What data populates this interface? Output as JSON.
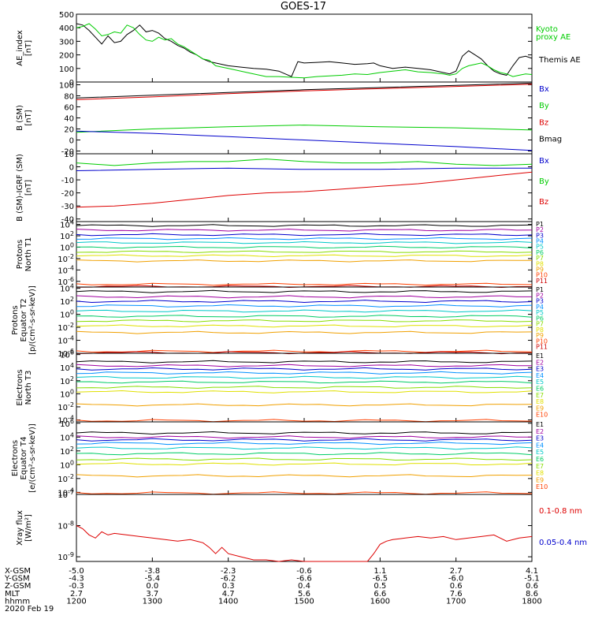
{
  "title": "GOES-17",
  "colors": {
    "black": "#000000",
    "green": "#00cc00",
    "blue": "#0000cc",
    "red": "#dd0000",
    "channels": [
      "#000000",
      "#a000a0",
      "#0000cc",
      "#0090ff",
      "#00c8c8",
      "#00cc66",
      "#88dd00",
      "#e0e000",
      "#f0a000",
      "#ff4000",
      "#cc0000"
    ]
  },
  "x_axis": {
    "rows": [
      {
        "label": "X-GSM",
        "values": [
          "-5.0",
          "-3.8",
          "-2.3",
          "-0.6",
          "1.1",
          "2.7",
          "4.1"
        ]
      },
      {
        "label": "Y-GSM",
        "values": [
          "-4.3",
          "-5.4",
          "-6.2",
          "-6.6",
          "-6.5",
          "-6.0",
          "-5.1"
        ]
      },
      {
        "label": "Z-GSM",
        "values": [
          "-0.3",
          "0.0",
          "0.3",
          "0.4",
          "0.5",
          "0.6",
          "0.6"
        ]
      },
      {
        "label": "MLT",
        "values": [
          "2.7",
          "3.7",
          "4.7",
          "5.6",
          "6.6",
          "7.6",
          "8.6"
        ]
      },
      {
        "label": "hhmm",
        "values": [
          "1200",
          "1300",
          "1400",
          "1500",
          "1600",
          "1700",
          "1800"
        ]
      }
    ],
    "date": "2020 Feb 19"
  },
  "chart_data": [
    {
      "type": "line",
      "id": "ae",
      "ylabel": [
        "AE_index",
        "[nT]"
      ],
      "ylim": [
        0,
        500
      ],
      "ticks": [
        "0",
        "100",
        "200",
        "300",
        "400",
        "500"
      ],
      "tick_values": [
        0,
        100,
        200,
        300,
        400,
        500
      ],
      "legend": [
        {
          "text": "Kyoto",
          "color": "green"
        },
        {
          "text": "proxy AE",
          "color": "green"
        },
        {
          "text": "Themis AE",
          "color": "black"
        }
      ],
      "series": [
        {
          "name": "Themis AE",
          "color": "black",
          "x": [
            1200,
            1205,
            1210,
            1215,
            1220,
            1225,
            1230,
            1235,
            1240,
            1245,
            1250,
            1255,
            1300,
            1305,
            1310,
            1315,
            1320,
            1325,
            1330,
            1335,
            1340,
            1345,
            1350,
            1355,
            1400,
            1410,
            1420,
            1430,
            1440,
            1445,
            1450,
            1455,
            1500,
            1510,
            1520,
            1530,
            1540,
            1550,
            1555,
            1600,
            1605,
            1610,
            1620,
            1630,
            1640,
            1650,
            1655,
            1700,
            1705,
            1710,
            1715,
            1720,
            1725,
            1730,
            1735,
            1740,
            1745,
            1750,
            1755,
            1800
          ],
          "y": [
            430,
            420,
            380,
            330,
            280,
            340,
            290,
            300,
            350,
            380,
            420,
            370,
            380,
            360,
            320,
            300,
            270,
            250,
            220,
            200,
            170,
            150,
            140,
            130,
            120,
            110,
            100,
            95,
            80,
            60,
            40,
            150,
            140,
            145,
            150,
            140,
            130,
            135,
            140,
            120,
            110,
            100,
            110,
            100,
            90,
            70,
            60,
            80,
            190,
            230,
            200,
            170,
            120,
            80,
            60,
            50,
            120,
            180,
            190,
            175
          ]
        },
        {
          "name": "Kyoto proxy AE",
          "color": "green",
          "x": [
            1200,
            1205,
            1210,
            1215,
            1220,
            1225,
            1230,
            1235,
            1240,
            1245,
            1250,
            1255,
            1300,
            1305,
            1310,
            1315,
            1320,
            1325,
            1330,
            1335,
            1340,
            1345,
            1350,
            1355,
            1400,
            1410,
            1420,
            1430,
            1440,
            1450,
            1500,
            1510,
            1520,
            1530,
            1540,
            1550,
            1600,
            1610,
            1620,
            1630,
            1640,
            1650,
            1655,
            1700,
            1705,
            1710,
            1715,
            1720,
            1725,
            1730,
            1735,
            1740,
            1745,
            1750,
            1755,
            1800
          ],
          "y": [
            400,
            410,
            430,
            390,
            340,
            350,
            370,
            360,
            420,
            400,
            350,
            310,
            300,
            330,
            310,
            320,
            280,
            260,
            230,
            200,
            170,
            160,
            120,
            110,
            100,
            80,
            60,
            40,
            40,
            35,
            30,
            40,
            45,
            50,
            60,
            55,
            70,
            80,
            90,
            75,
            70,
            60,
            50,
            60,
            100,
            120,
            130,
            140,
            120,
            90,
            70,
            60,
            40,
            50,
            60,
            55
          ]
        }
      ]
    },
    {
      "type": "line",
      "id": "bsm",
      "ylabel": [
        "B (SM)",
        "[nT]"
      ],
      "ylim": [
        -25,
        105
      ],
      "ticks": [
        "-20",
        "0",
        "20",
        "40",
        "60",
        "80",
        "100"
      ],
      "tick_values": [
        -20,
        0,
        20,
        40,
        60,
        80,
        100
      ],
      "legend": [
        {
          "text": "Bx",
          "color": "blue"
        },
        {
          "text": "By",
          "color": "green"
        },
        {
          "text": "Bz",
          "color": "red"
        },
        {
          "text": "Bmag",
          "color": "black"
        }
      ],
      "series": [
        {
          "name": "Bmag",
          "color": "black",
          "x": [
            1200,
            1300,
            1400,
            1500,
            1600,
            1700,
            1800
          ],
          "y": [
            76,
            81,
            86,
            91,
            95,
            99,
            103
          ]
        },
        {
          "name": "Bz",
          "color": "red",
          "x": [
            1200,
            1300,
            1400,
            1500,
            1600,
            1700,
            1800
          ],
          "y": [
            73,
            78,
            84,
            89,
            93,
            97,
            101
          ]
        },
        {
          "name": "By",
          "color": "green",
          "x": [
            1200,
            1300,
            1400,
            1500,
            1600,
            1700,
            1800
          ],
          "y": [
            14,
            20,
            24,
            27,
            24,
            22,
            18
          ]
        },
        {
          "name": "Bx",
          "color": "blue",
          "x": [
            1200,
            1300,
            1400,
            1500,
            1600,
            1700,
            1800
          ],
          "y": [
            16,
            12,
            6,
            0,
            -6,
            -12,
            -19
          ]
        }
      ]
    },
    {
      "type": "line",
      "id": "bigrf",
      "ylabel": [
        "B (SM)-IGRF (SM)",
        "[nT]"
      ],
      "ylim": [
        -42,
        10
      ],
      "ticks": [
        "-40",
        "-30",
        "-20",
        "-10",
        "0",
        "10"
      ],
      "tick_values": [
        -40,
        -30,
        -20,
        -10,
        0,
        10
      ],
      "legend": [
        {
          "text": "Bx",
          "color": "blue"
        },
        {
          "text": "By",
          "color": "green"
        },
        {
          "text": "Bz",
          "color": "red"
        }
      ],
      "series": [
        {
          "name": "By",
          "color": "green",
          "x": [
            1200,
            1230,
            1300,
            1330,
            1400,
            1430,
            1500,
            1530,
            1600,
            1630,
            1700,
            1730,
            1800
          ],
          "y": [
            3,
            1,
            3,
            4,
            4,
            6,
            4,
            3,
            3,
            4,
            2,
            1,
            2
          ]
        },
        {
          "name": "Bx",
          "color": "blue",
          "x": [
            1200,
            1300,
            1400,
            1500,
            1600,
            1700,
            1800
          ],
          "y": [
            -3,
            -2,
            -1,
            -2,
            -2,
            -1,
            -1
          ]
        },
        {
          "name": "Bz",
          "color": "red",
          "x": [
            1200,
            1230,
            1300,
            1330,
            1400,
            1430,
            1500,
            1530,
            1600,
            1630,
            1700,
            1730,
            1800
          ],
          "y": [
            -31,
            -30,
            -28,
            -25,
            -22,
            -20,
            -19,
            -17,
            -15,
            -13,
            -10,
            -7,
            -4
          ]
        }
      ]
    },
    {
      "type": "line",
      "id": "p_north",
      "log": true,
      "ylabel": [
        "Protons",
        "North T1"
      ],
      "ylim_exp": [
        -7,
        4.5
      ],
      "ticks": [
        "10-6",
        "10-4",
        "10-2",
        "100",
        "102",
        "104"
      ],
      "tick_exps": [
        -6,
        -4,
        -2,
        0,
        2,
        4
      ],
      "legend": [
        "P1",
        "P2",
        "P3",
        "P4",
        "P5",
        "P6",
        "P7",
        "P8",
        "P9",
        "P10",
        "P11"
      ],
      "levels_exp": [
        3.8,
        3.0,
        2.2,
        1.5,
        0.8,
        0.0,
        -0.8,
        -1.5,
        -2.4,
        -6.5,
        -6.9
      ]
    },
    {
      "type": "line",
      "id": "p_equator",
      "log": true,
      "ylabel": [
        "Protons",
        "Equator T2",
        "[p/(cm²-s-sr-keV)]"
      ],
      "ylim_exp": [
        -6,
        4.2
      ],
      "ticks": [
        "10-6",
        "10-4",
        "10-2",
        "100",
        "102",
        "104"
      ],
      "tick_exps": [
        -6,
        -4,
        -2,
        0,
        2,
        4
      ],
      "legend": [
        "P1",
        "P2",
        "P3",
        "P4",
        "P5",
        "P6",
        "P7",
        "P8",
        "P9",
        "P10",
        "P11"
      ],
      "levels_exp": [
        3.5,
        2.7,
        2.0,
        1.3,
        0.5,
        -0.3,
        -1.0,
        -1.8,
        -2.8,
        -5.7,
        -5.9
      ]
    },
    {
      "type": "line",
      "id": "e_north",
      "log": true,
      "ylabel": [
        "Electrons",
        "North T3"
      ],
      "ylim_exp": [
        -4.3,
        6.2
      ],
      "ticks": [
        "10-4",
        "10-2",
        "100",
        "102",
        "104",
        "106"
      ],
      "tick_exps": [
        -4,
        -2,
        0,
        2,
        4,
        6
      ],
      "legend": [
        "E1",
        "E2",
        "E3",
        "E4",
        "E5",
        "E6",
        "E7",
        "E8",
        "E9",
        "E10"
      ],
      "levels_exp": [
        4.9,
        4.3,
        3.8,
        3.2,
        2.5,
        1.8,
        1.0,
        0.3,
        -1.7,
        -4.1
      ]
    },
    {
      "type": "line",
      "id": "e_equator",
      "log": true,
      "ylabel": [
        "Electrons",
        "Equator T4",
        "[e/(cm²-s-sr-keV)]"
      ],
      "ylim_exp": [
        -4.3,
        6.2
      ],
      "ticks": [
        "10-4",
        "10-2",
        "100",
        "102",
        "104",
        "106"
      ],
      "tick_exps": [
        -4,
        -2,
        0,
        2,
        4,
        6
      ],
      "legend": [
        "E1",
        "E2",
        "E3",
        "E4",
        "E5",
        "E6",
        "E7",
        "E8",
        "E9",
        "E10"
      ],
      "levels_exp": [
        4.6,
        4.0,
        3.6,
        3.1,
        2.4,
        1.6,
        0.8,
        0.1,
        -1.6,
        -4.1
      ]
    },
    {
      "type": "line",
      "id": "xray",
      "log": true,
      "ylabel": [
        "Xray flux",
        "[W/m²]"
      ],
      "ylim_exp": [
        -9.15,
        -7
      ],
      "ticks": [
        "10-9",
        "10-8",
        "10-7"
      ],
      "tick_exps": [
        -9,
        -8,
        -7
      ],
      "legend": [
        {
          "text": "0.1-0.8 nm",
          "color": "red"
        },
        {
          "text": "0.05-0.4 nm",
          "color": "blue"
        }
      ],
      "series": [
        {
          "name": "0.1-0.8 nm",
          "color": "red",
          "x": [
            1200,
            1205,
            1210,
            1215,
            1220,
            1225,
            1230,
            1240,
            1250,
            1300,
            1310,
            1320,
            1330,
            1340,
            1345,
            1350,
            1355,
            1400,
            1410,
            1420,
            1430,
            1440,
            1450,
            1500,
            1510,
            1520,
            1530,
            1540,
            1550,
            1555,
            1600,
            1605,
            1610,
            1620,
            1630,
            1640,
            1650,
            1700,
            1710,
            1720,
            1730,
            1740,
            1750,
            1800
          ],
          "y_exp": [
            -8.0,
            -8.1,
            -8.3,
            -8.4,
            -8.2,
            -8.3,
            -8.25,
            -8.3,
            -8.35,
            -8.4,
            -8.45,
            -8.5,
            -8.45,
            -8.55,
            -8.7,
            -8.9,
            -8.7,
            -8.9,
            -9.0,
            -9.1,
            -9.1,
            -9.15,
            -9.1,
            -9.15,
            -9.15,
            -9.15,
            -9.15,
            -9.15,
            -9.15,
            -8.9,
            -8.6,
            -8.5,
            -8.45,
            -8.4,
            -8.35,
            -8.4,
            -8.35,
            -8.45,
            -8.4,
            -8.35,
            -8.3,
            -8.5,
            -8.4,
            -8.35
          ]
        }
      ]
    }
  ]
}
